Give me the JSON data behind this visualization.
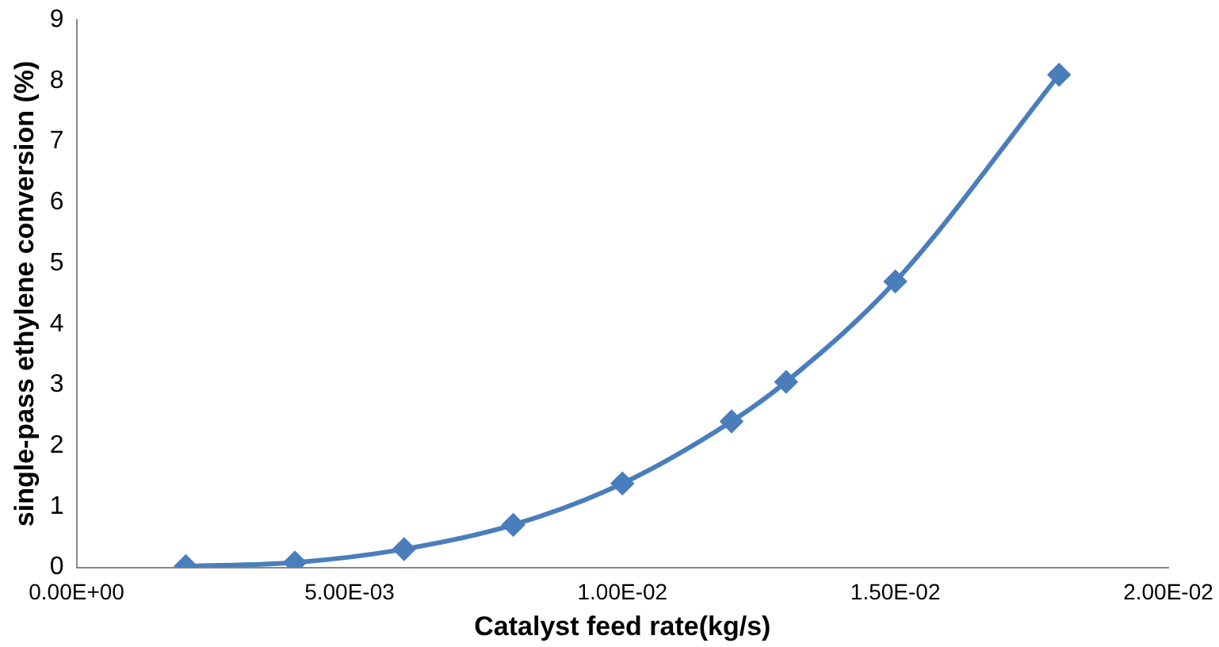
{
  "chart_data": {
    "type": "line",
    "xlabel": "Catalyst feed rate(kg/s)",
    "ylabel": "single-pass ethylene conversion (%)",
    "x": [
      0.002,
      0.004,
      0.006,
      0.008,
      0.01,
      0.012,
      0.013,
      0.015,
      0.018
    ],
    "series": [
      {
        "color": "#4a7ebb",
        "values": [
          0.02,
          0.08,
          0.3,
          0.7,
          1.38,
          2.4,
          3.05,
          4.7,
          8.1
        ]
      }
    ],
    "xlim": [
      0,
      0.02
    ],
    "xticks": [
      {
        "value": 0,
        "label": "0.00E+00"
      },
      {
        "value": 0.005,
        "label": "5.00E-03"
      },
      {
        "value": 0.01,
        "label": "1.00E-02"
      },
      {
        "value": 0.015,
        "label": "1.50E-02"
      },
      {
        "value": 0.02,
        "label": "2.00E-02"
      }
    ],
    "ylim": [
      0,
      9
    ],
    "yticks": [
      0,
      1,
      2,
      3,
      4,
      5,
      6,
      7,
      8,
      9
    ],
    "grid": false,
    "legend": false,
    "marker": "diamond",
    "line_style": "solid"
  }
}
